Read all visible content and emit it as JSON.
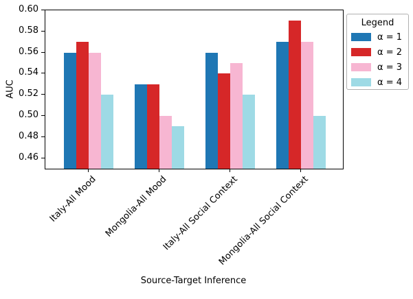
{
  "chart_data": {
    "type": "bar",
    "title": "",
    "xlabel": "Source-Target Inference",
    "ylabel": "AUC",
    "categories": [
      "Italy-All Mood",
      "Mongolia-All Mood",
      "Italy-All Social Context",
      "Mongolia-All Social Context"
    ],
    "series": [
      {
        "name": "α = 1",
        "color": "#1f77b4",
        "values": [
          0.56,
          0.53,
          0.56,
          0.57
        ]
      },
      {
        "name": "α = 2",
        "color": "#d62728",
        "values": [
          0.57,
          0.53,
          0.54,
          0.59
        ]
      },
      {
        "name": "α = 3",
        "color": "#f7b6d2",
        "values": [
          0.56,
          0.5,
          0.55,
          0.57
        ]
      },
      {
        "name": "α = 4",
        "color": "#9edae5",
        "values": [
          0.52,
          0.49,
          0.52,
          0.5
        ]
      }
    ],
    "ylim": [
      0.45,
      0.6
    ],
    "yticks": [
      0.46,
      0.48,
      0.5,
      0.52,
      0.54,
      0.56,
      0.58,
      0.6
    ],
    "ytick_labels": [
      "0.46",
      "0.48",
      "0.50",
      "0.52",
      "0.54",
      "0.56",
      "0.58",
      "0.60"
    ],
    "xtick_rotation_deg": 45,
    "grid": false,
    "legend": {
      "title": "Legend",
      "location": "outside-upper-right"
    },
    "colors": {
      "axis": "#000000",
      "text": "#000000",
      "background": "#ffffff"
    }
  }
}
